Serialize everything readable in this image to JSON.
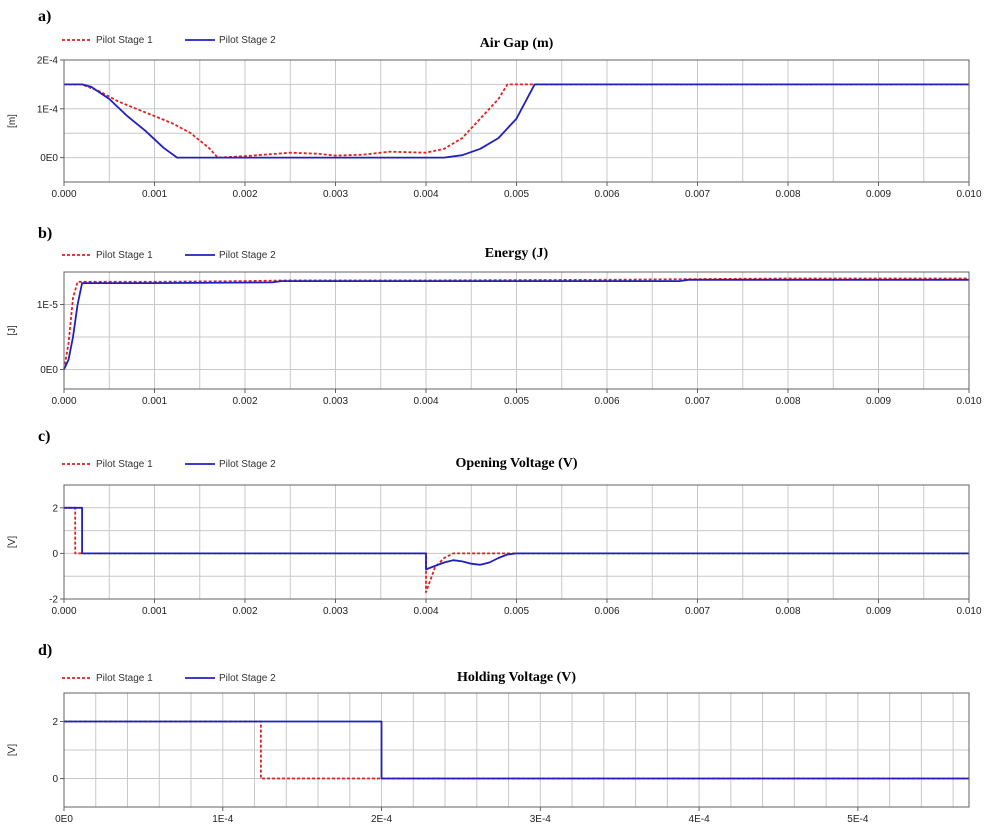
{
  "chart_data": [
    {
      "panel_letter": "a)",
      "type": "line",
      "title": "Air Gap (m)",
      "ylabel": "[m]",
      "xlim": [
        0,
        0.01
      ],
      "ylim": [
        -5e-05,
        0.0002
      ],
      "xticks": [
        0,
        0.001,
        0.002,
        0.003,
        0.004,
        0.005,
        0.006,
        0.007,
        0.008,
        0.009,
        0.01
      ],
      "xtick_labels": [
        "0.000",
        "0.001",
        "0.002",
        "0.003",
        "0.004",
        "0.005",
        "0.006",
        "0.007",
        "0.008",
        "0.009",
        "0.010"
      ],
      "yticks": [
        0,
        0.0001,
        0.0002
      ],
      "ytick_labels": [
        "0E0",
        "1E-4",
        "2E-4"
      ],
      "x_minor_step": 0.0005,
      "y_minor_step": 5e-05,
      "grid": true,
      "legend_position": "top-left",
      "series": [
        {
          "name": "Pilot Stage 1",
          "color": "#e02020",
          "dash": "dashed",
          "x": [
            0,
            0.0002,
            0.0004,
            0.0006,
            0.0008,
            0.001,
            0.0012,
            0.0014,
            0.0016,
            0.0017,
            0.002,
            0.0025,
            0.0028,
            0.003,
            0.0033,
            0.0036,
            0.004,
            0.0042,
            0.0044,
            0.0046,
            0.0048,
            0.0049,
            0.0052,
            0.01
          ],
          "y": [
            0.00015,
            0.00015,
            0.000135,
            0.000115,
            0.0001,
            8.5e-05,
            7e-05,
            5e-05,
            2e-05,
            0,
            3e-06,
            1e-05,
            8e-06,
            4e-06,
            6e-06,
            1.2e-05,
            1e-05,
            1.8e-05,
            4e-05,
            8e-05,
            0.00012,
            0.00015,
            0.00015,
            0.00015
          ]
        },
        {
          "name": "Pilot Stage 2",
          "color": "#2020c0",
          "dash": "solid",
          "x": [
            0,
            0.0002,
            0.0003,
            0.0005,
            0.0007,
            0.0009,
            0.0011,
            0.00125,
            0.002,
            0.003,
            0.0042,
            0.0044,
            0.0046,
            0.0048,
            0.005,
            0.0052,
            0.01
          ],
          "y": [
            0.00015,
            0.00015,
            0.000145,
            0.00012,
            8.5e-05,
            5.5e-05,
            2e-05,
            0,
            0,
            0,
            0,
            5e-06,
            1.8e-05,
            4e-05,
            8e-05,
            0.00015,
            0.00015
          ]
        }
      ]
    },
    {
      "panel_letter": "b)",
      "type": "line",
      "title": "Energy (J)",
      "ylabel": "[J]",
      "xlim": [
        0,
        0.01
      ],
      "ylim": [
        -3e-06,
        1.5e-05
      ],
      "xticks": [
        0,
        0.001,
        0.002,
        0.003,
        0.004,
        0.005,
        0.006,
        0.007,
        0.008,
        0.009,
        0.01
      ],
      "xtick_labels": [
        "0.000",
        "0.001",
        "0.002",
        "0.003",
        "0.004",
        "0.005",
        "0.006",
        "0.007",
        "0.008",
        "0.009",
        "0.010"
      ],
      "yticks": [
        0,
        1e-05
      ],
      "ytick_labels": [
        "0E0",
        "1E-5"
      ],
      "x_minor_step": 0.0005,
      "y_minor_step": 5e-06,
      "grid": true,
      "legend_position": "top-left",
      "series": [
        {
          "name": "Pilot Stage 1",
          "color": "#e02020",
          "dash": "dashed",
          "x": [
            0,
            5e-05,
            0.0001,
            0.00015,
            0.0002,
            0.001,
            0.002,
            0.0025,
            0.004,
            0.006,
            0.007,
            0.008,
            0.01
          ],
          "y": [
            0,
            4e-06,
            1.1e-05,
            1.35e-05,
            1.35e-05,
            1.35e-05,
            1.36e-05,
            1.37e-05,
            1.37e-05,
            1.38e-05,
            1.39e-05,
            1.4e-05,
            1.4e-05
          ]
        },
        {
          "name": "Pilot Stage 2",
          "color": "#2020c0",
          "dash": "solid",
          "x": [
            0,
            5e-05,
            0.0001,
            0.00015,
            0.0002,
            0.001,
            0.0023,
            0.0024,
            0.004,
            0.0068,
            0.0069,
            0.01
          ],
          "y": [
            0,
            1.5e-06,
            5e-06,
            1e-05,
            1.33e-05,
            1.33e-05,
            1.34e-05,
            1.36e-05,
            1.36e-05,
            1.36e-05,
            1.38e-05,
            1.38e-05
          ]
        }
      ]
    },
    {
      "panel_letter": "c)",
      "type": "line",
      "title": "Opening Voltage (V)",
      "ylabel": "[V]",
      "xlim": [
        0,
        0.01
      ],
      "ylim": [
        -2,
        3
      ],
      "xticks": [
        0,
        0.001,
        0.002,
        0.003,
        0.004,
        0.005,
        0.006,
        0.007,
        0.008,
        0.009,
        0.01
      ],
      "xtick_labels": [
        "0.000",
        "0.001",
        "0.002",
        "0.003",
        "0.004",
        "0.005",
        "0.006",
        "0.007",
        "0.008",
        "0.009",
        "0.010"
      ],
      "yticks": [
        -2,
        0,
        2
      ],
      "ytick_labels": [
        "-2",
        "0",
        "2"
      ],
      "x_minor_step": 0.0005,
      "y_minor_step": 1,
      "grid": true,
      "legend_position": "top-left",
      "series": [
        {
          "name": "Pilot Stage 1",
          "color": "#e02020",
          "dash": "dashed",
          "x": [
            0,
            0.000124,
            0.000124,
            0.004,
            0.004,
            0.0041,
            0.0042,
            0.0043,
            0.0045,
            0.0048,
            0.005,
            0.01
          ],
          "y": [
            2,
            2,
            0,
            0,
            -1.7,
            -0.6,
            -0.2,
            0,
            0,
            0,
            0,
            0
          ]
        },
        {
          "name": "Pilot Stage 2",
          "color": "#2020c0",
          "dash": "solid",
          "x": [
            0,
            0.0002,
            0.0002,
            0.004,
            0.004,
            0.0041,
            0.0042,
            0.0043,
            0.0044,
            0.0045,
            0.0046,
            0.0047,
            0.0048,
            0.0049,
            0.005,
            0.01
          ],
          "y": [
            2,
            2,
            0,
            0,
            -0.7,
            -0.55,
            -0.4,
            -0.3,
            -0.35,
            -0.45,
            -0.5,
            -0.4,
            -0.2,
            -0.05,
            0,
            0
          ]
        }
      ]
    },
    {
      "panel_letter": "d)",
      "type": "line",
      "title": "Holding Voltage (V)",
      "ylabel": "[V]",
      "xlim": [
        0,
        0.00057
      ],
      "ylim": [
        -1,
        3
      ],
      "xticks": [
        0,
        0.0001,
        0.0002,
        0.0003,
        0.0004,
        0.0005
      ],
      "xtick_labels": [
        "0E0",
        "1E-4",
        "2E-4",
        "3E-4",
        "4E-4",
        "5E-4"
      ],
      "yticks": [
        0,
        2
      ],
      "ytick_labels": [
        "0",
        "2"
      ],
      "x_minor_step": 2e-05,
      "y_minor_step": 1,
      "grid": true,
      "legend_position": "top-left",
      "series": [
        {
          "name": "Pilot Stage 1",
          "color": "#e02020",
          "dash": "dashed",
          "x": [
            0,
            0.000124,
            0.000124,
            0.0002,
            0.00057
          ],
          "y": [
            2,
            2,
            0,
            0,
            0
          ]
        },
        {
          "name": "Pilot Stage 2",
          "color": "#2020c0",
          "dash": "solid",
          "x": [
            0,
            0.0002,
            0.0002,
            0.00057
          ],
          "y": [
            2,
            2,
            0,
            0
          ]
        }
      ]
    }
  ]
}
